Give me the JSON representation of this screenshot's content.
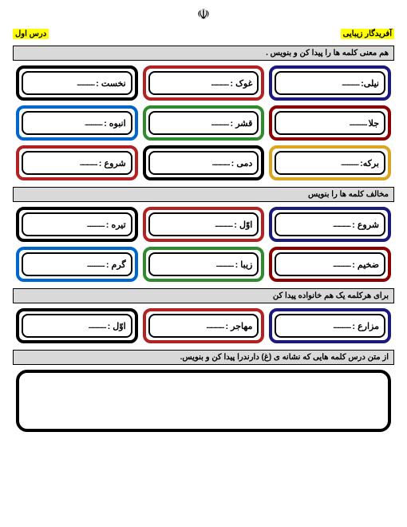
{
  "emblem": "☫",
  "header": {
    "right_label": "آفریدگار زیبایی",
    "left_label": "درس اول"
  },
  "sections": [
    {
      "title": "هم معنی کلمه ها را پیدا کن و بنویس .",
      "cards": [
        {
          "label": "نیلی:",
          "color": "#1a1a7a"
        },
        {
          "label": "غوک :",
          "color": "#b22222"
        },
        {
          "label": "نخست :",
          "color": "#000000"
        },
        {
          "label": "جلا",
          "color": "#8b0000"
        },
        {
          "label": "قشر :",
          "color": "#2e8b2e"
        },
        {
          "label": "انبوه :",
          "color": "#0066cc"
        },
        {
          "label": "برکه:",
          "color": "#daa520"
        },
        {
          "label": "دمی :",
          "color": "#000000"
        },
        {
          "label": "شروع :",
          "color": "#b22222"
        }
      ]
    },
    {
      "title": "مخالف کلمه ها را بنویس",
      "cards": [
        {
          "label": "شروع :",
          "color": "#1a1a7a"
        },
        {
          "label": "اوّل :",
          "color": "#b22222"
        },
        {
          "label": "تیره :",
          "color": "#000000"
        },
        {
          "label": "ضخیم :",
          "color": "#8b0000"
        },
        {
          "label": "زیبا :",
          "color": "#2e8b2e"
        },
        {
          "label": "گرم :",
          "color": "#0066cc"
        }
      ]
    },
    {
      "title": "برای هرکلمه یک هم خانواده پیدا کن",
      "cards": [
        {
          "label": "مزارع :",
          "color": "#1a1a7a"
        },
        {
          "label": "مهاجر :",
          "color": "#b22222"
        },
        {
          "label": "اوّل :",
          "color": "#000000"
        }
      ]
    },
    {
      "title": "از متن درس کلمه هایی که نشانه ی (غ) دارندرا پیدا کن و بنویس.",
      "cards": []
    }
  ],
  "dots_text": ".................."
}
